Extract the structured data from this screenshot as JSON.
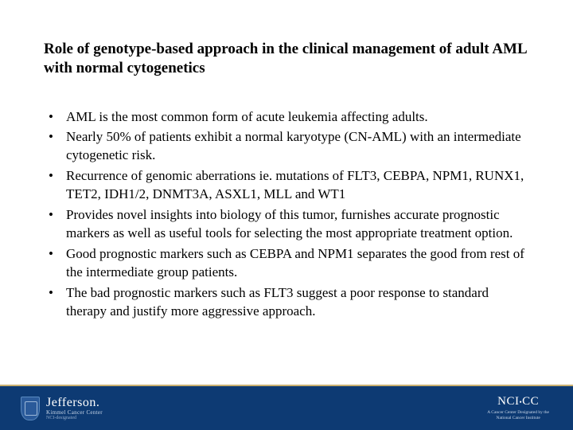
{
  "slide": {
    "title": "Role of genotype-based approach in the clinical management of adult AML with normal cytogenetics",
    "bullets": [
      "AML is the most common form of acute leukemia affecting adults.",
      "Nearly 50% of patients exhibit a normal karyotype (CN-AML) with an intermediate cytogenetic risk.",
      "Recurrence of genomic aberrations ie. mutations of FLT3, CEBPA, NPM1, RUNX1, TET2, IDH1/2, DNMT3A, ASXL1, MLL and WT1",
      " Provides novel insights into biology of this tumor, furnishes accurate prognostic markers as well as useful tools for selecting the most appropriate treatment option.",
      "Good prognostic markers such as CEBPA and NPM1 separates the good from rest of the intermediate group patients.",
      "The bad prognostic markers such as FLT3 suggest a poor response to standard therapy and justify more aggressive approach."
    ]
  },
  "footer": {
    "left": {
      "main": "Jefferson.",
      "sub1": "Kimmel Cancer Center",
      "sub2": "NCI-designated"
    },
    "right": {
      "main_pre": "NCI",
      "main_post": "CC",
      "sub1": "A Cancer Center Designated by the",
      "sub2": "National Cancer Institute"
    }
  },
  "colors": {
    "footer_bg": "#0d3a73",
    "accent": "#c9b070",
    "text": "#000000"
  }
}
